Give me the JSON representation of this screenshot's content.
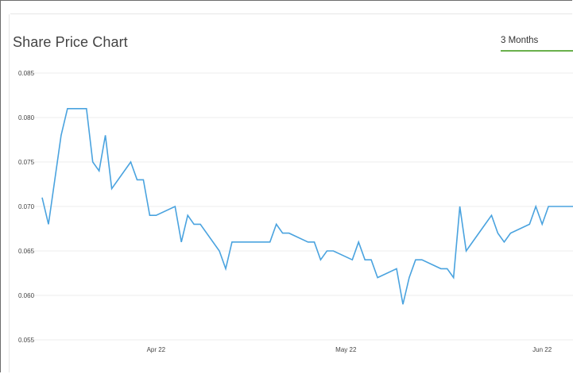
{
  "panel": {
    "title": "Share Price Chart",
    "range_tab": "3 Months",
    "accent_color": "#6ab04c",
    "line_color": "#4aa3df",
    "grid_color": "#eeeeee"
  },
  "chart_data": {
    "type": "line",
    "title": "Share Price Chart",
    "xlabel": "",
    "ylabel": "",
    "ylim": [
      0.055,
      0.085
    ],
    "yticks": [
      0.085,
      0.08,
      0.075,
      0.07,
      0.065,
      0.06,
      0.055
    ],
    "ytick_labels": [
      "0.085",
      "0.080",
      "0.075",
      "0.070",
      "0.065",
      "0.060",
      "0.055"
    ],
    "xlim": [
      "2022-03-14",
      "2022-06-06"
    ],
    "xticks": [
      "2022-04-01",
      "2022-05-01",
      "2022-06-01"
    ],
    "xtick_labels": [
      "Apr 22",
      "May 22",
      "Jun 22"
    ],
    "grid": true,
    "series": [
      {
        "x": [
          "2022-03-14",
          "2022-03-15",
          "2022-03-17",
          "2022-03-18",
          "2022-03-21",
          "2022-03-22",
          "2022-03-23",
          "2022-03-24",
          "2022-03-25",
          "2022-03-28",
          "2022-03-29",
          "2022-03-30",
          "2022-03-31",
          "2022-04-01",
          "2022-04-04",
          "2022-04-05",
          "2022-04-06",
          "2022-04-07",
          "2022-04-08",
          "2022-04-11",
          "2022-04-12",
          "2022-04-13",
          "2022-04-14",
          "2022-04-19",
          "2022-04-20",
          "2022-04-21",
          "2022-04-22",
          "2022-04-25",
          "2022-04-26",
          "2022-04-27",
          "2022-04-28",
          "2022-04-29",
          "2022-05-02",
          "2022-05-03",
          "2022-05-04",
          "2022-05-05",
          "2022-05-06",
          "2022-05-09",
          "2022-05-10",
          "2022-05-11",
          "2022-05-12",
          "2022-05-13",
          "2022-05-16",
          "2022-05-17",
          "2022-05-18",
          "2022-05-19",
          "2022-05-20",
          "2022-05-23",
          "2022-05-24",
          "2022-05-25",
          "2022-05-26",
          "2022-05-27",
          "2022-05-30",
          "2022-05-31",
          "2022-06-01",
          "2022-06-02",
          "2022-06-03",
          "2022-06-06"
        ],
        "values": [
          0.071,
          0.068,
          0.078,
          0.081,
          0.081,
          0.075,
          0.074,
          0.078,
          0.072,
          0.075,
          0.073,
          0.073,
          0.069,
          0.069,
          0.07,
          0.066,
          0.069,
          0.068,
          0.068,
          0.065,
          0.063,
          0.066,
          0.066,
          0.066,
          0.068,
          0.067,
          0.067,
          0.066,
          0.066,
          0.064,
          0.065,
          0.065,
          0.064,
          0.066,
          0.064,
          0.064,
          0.062,
          0.063,
          0.059,
          0.062,
          0.064,
          0.064,
          0.063,
          0.063,
          0.062,
          0.07,
          0.065,
          0.068,
          0.069,
          0.067,
          0.066,
          0.067,
          0.068,
          0.07,
          0.068,
          0.07,
          0.07,
          0.07
        ]
      }
    ]
  }
}
